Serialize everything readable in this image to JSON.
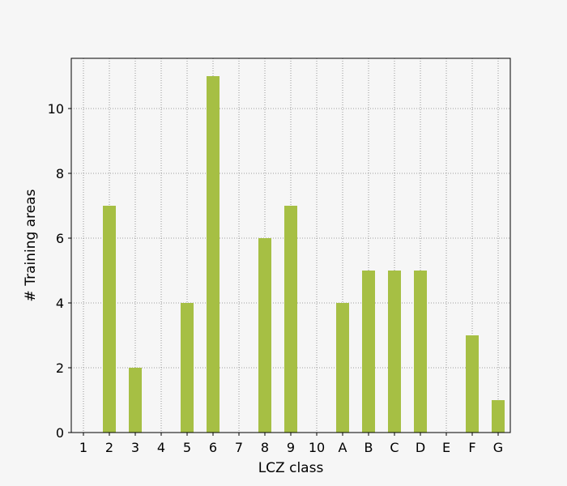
{
  "chart_data": {
    "type": "bar",
    "categories": [
      "1",
      "2",
      "3",
      "4",
      "5",
      "6",
      "7",
      "8",
      "9",
      "10",
      "A",
      "B",
      "C",
      "D",
      "E",
      "F",
      "G"
    ],
    "values": [
      0,
      7,
      2,
      0,
      4,
      11,
      0,
      6,
      7,
      0,
      4,
      5,
      5,
      5,
      0,
      3,
      1
    ],
    "xlabel": "LCZ class",
    "ylabel": "# Training areas",
    "ylim": [
      0,
      11.55
    ],
    "yticks": [
      0,
      2,
      4,
      6,
      8,
      10
    ],
    "grid": true,
    "bar_color": "#a6bf44",
    "plot_background": "#f6f6f6"
  }
}
